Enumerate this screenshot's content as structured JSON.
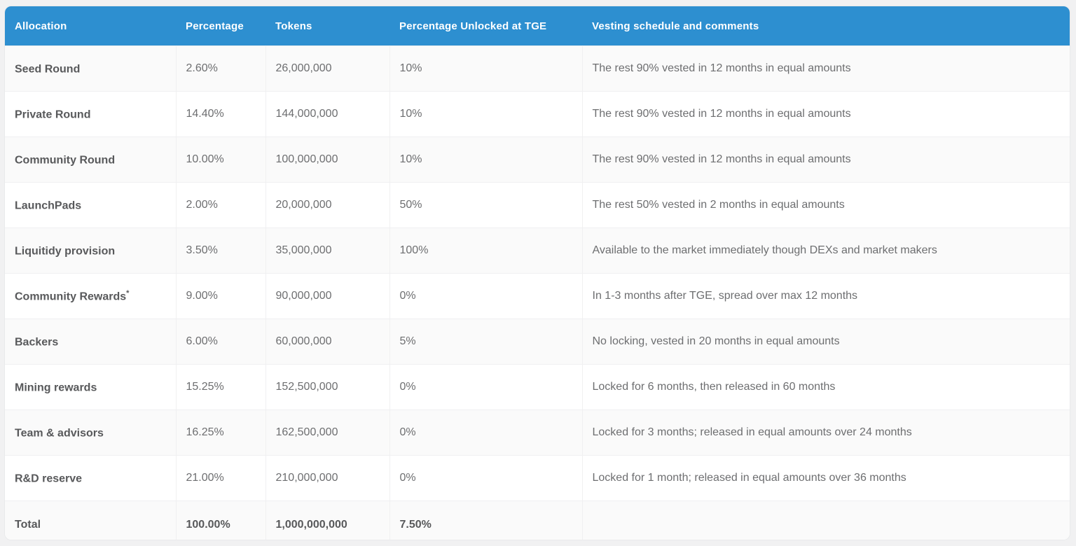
{
  "page": {
    "background_color": "#f1f1f2"
  },
  "table": {
    "header": {
      "bg_color": "#2d8fd0",
      "text_color": "#ffffff",
      "columns": [
        "Allocation",
        "Percentage",
        "Tokens",
        "Percentage Unlocked at TGE",
        "Vesting schedule and comments"
      ]
    },
    "rows": [
      {
        "allocation": "Seed Round",
        "sup": "",
        "percentage": "2.60%",
        "tokens": "26,000,000",
        "unlocked": "10%",
        "comment": "The rest 90% vested in 12 months in equal amounts"
      },
      {
        "allocation": "Private Round",
        "sup": "",
        "percentage": "14.40%",
        "tokens": "144,000,000",
        "unlocked": "10%",
        "comment": "The rest 90% vested in 12 months in equal amounts"
      },
      {
        "allocation": "Community Round",
        "sup": "",
        "percentage": "10.00%",
        "tokens": "100,000,000",
        "unlocked": "10%",
        "comment": "The rest 90% vested in 12 months in equal amounts"
      },
      {
        "allocation": "LaunchPads",
        "sup": "",
        "percentage": "2.00%",
        "tokens": "20,000,000",
        "unlocked": "50%",
        "comment": "The rest 50% vested in 2 months in equal amounts"
      },
      {
        "allocation": "Liquitidy provision",
        "sup": "",
        "percentage": "3.50%",
        "tokens": "35,000,000",
        "unlocked": "100%",
        "comment": "Available to the market immediately though DEXs and market makers"
      },
      {
        "allocation": "Community Rewards",
        "sup": "*",
        "percentage": "9.00%",
        "tokens": "90,000,000",
        "unlocked": "0%",
        "comment": "In 1-3 months after TGE, spread over max 12 months"
      },
      {
        "allocation": "Backers",
        "sup": "",
        "percentage": "6.00%",
        "tokens": "60,000,000",
        "unlocked": "5%",
        "comment": "No locking, vested in 20 months in equal amounts"
      },
      {
        "allocation": "Mining rewards",
        "sup": "",
        "percentage": "15.25%",
        "tokens": "152,500,000",
        "unlocked": "0%",
        "comment": "Locked for 6 months, then released in 60 months"
      },
      {
        "allocation": "Team & advisors",
        "sup": "",
        "percentage": "16.25%",
        "tokens": "162,500,000",
        "unlocked": "0%",
        "comment": "Locked for 3 months; released in equal amounts over 24 months"
      },
      {
        "allocation": "R&D reserve",
        "sup": "",
        "percentage": "21.00%",
        "tokens": "210,000,000",
        "unlocked": "0%",
        "comment": "Locked for 1 month; released in equal amounts over 36 months"
      }
    ],
    "total": {
      "allocation": "Total",
      "percentage": "100.00%",
      "tokens": "1,000,000,000",
      "unlocked": "7.50%",
      "comment": ""
    }
  }
}
